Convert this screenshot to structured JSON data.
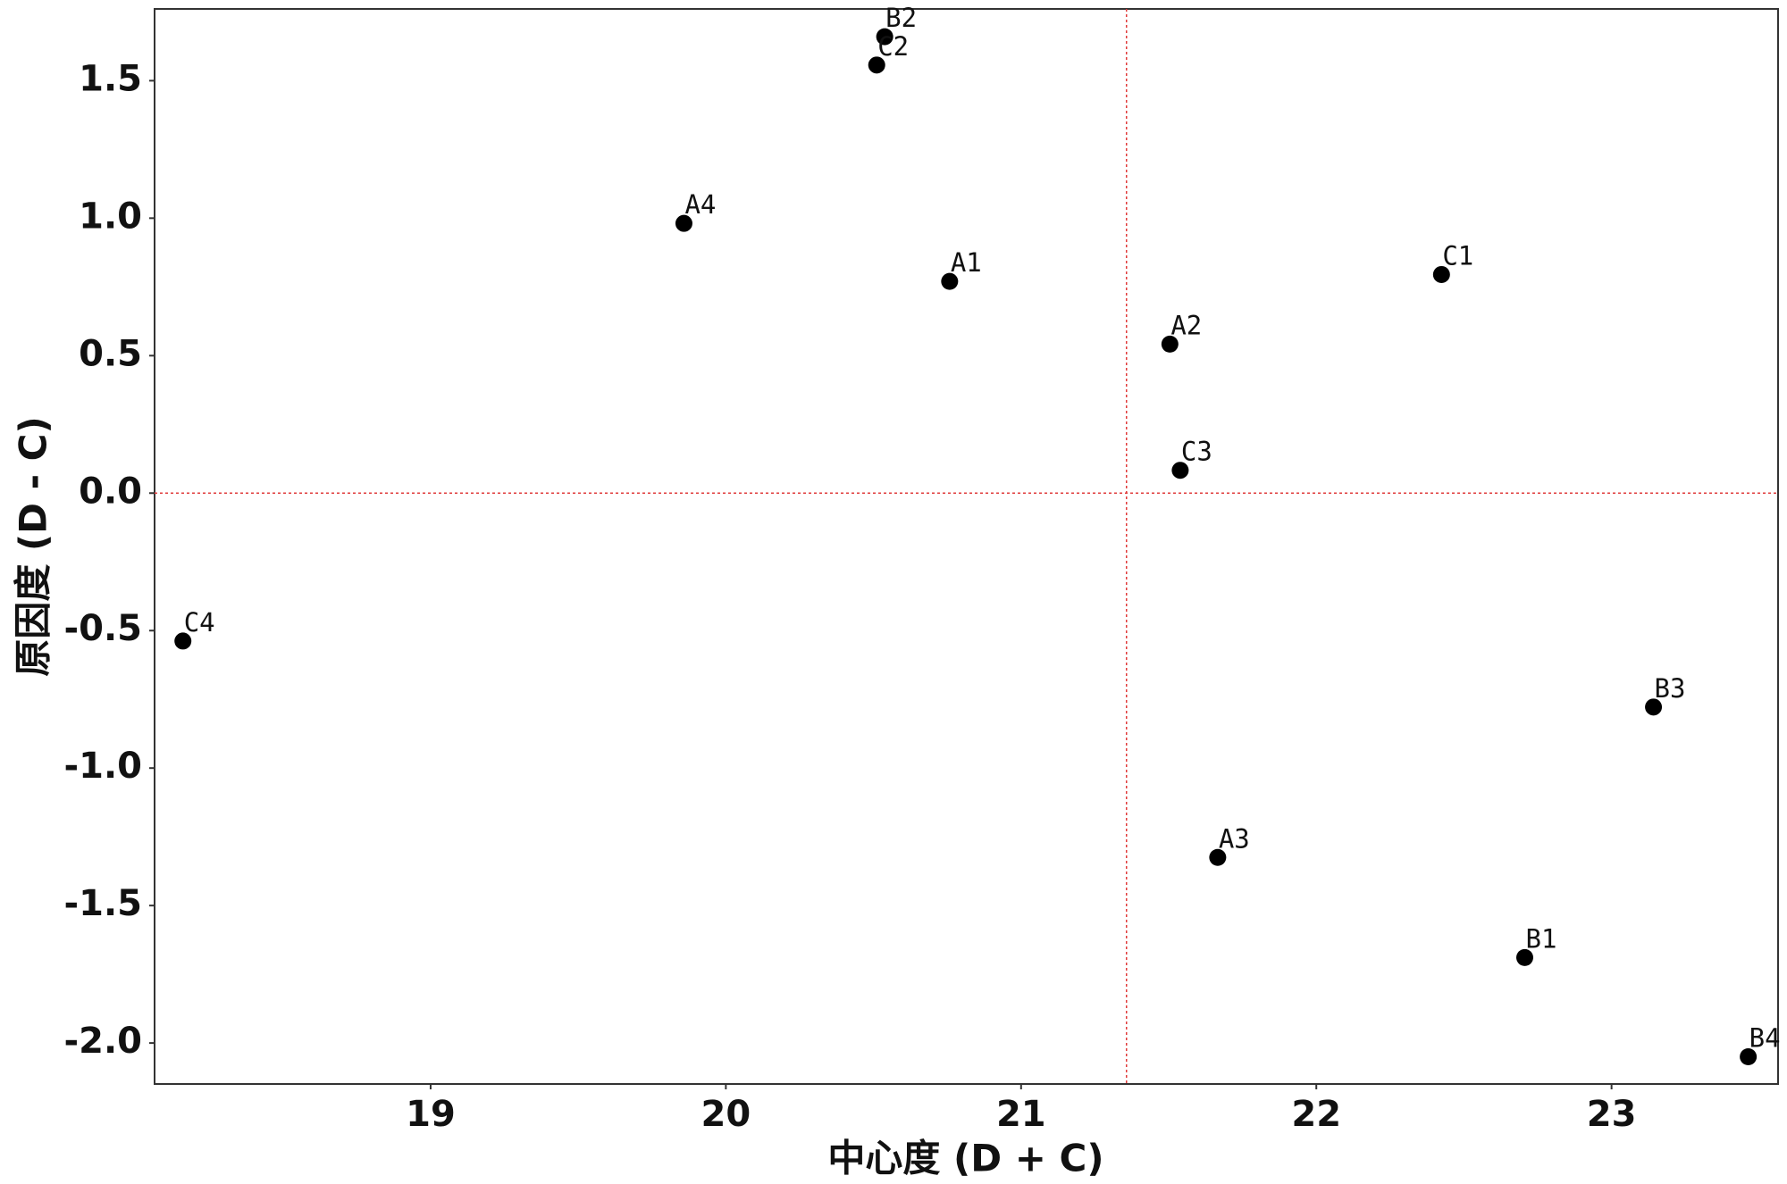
{
  "chart_data": {
    "type": "scatter",
    "x_label": "中心度 (D + C)",
    "y_label": "原因度 (D - C)",
    "labels": [
      "B2",
      "C2",
      "A4",
      "A1",
      "C1",
      "A2",
      "C3",
      "C4",
      "B3",
      "A3",
      "B1",
      "B4"
    ],
    "x": [
      20.538,
      20.511,
      19.858,
      20.758,
      22.424,
      21.504,
      21.539,
      18.161,
      23.142,
      21.666,
      22.706,
      23.463
    ],
    "values": [
      1.66,
      1.557,
      0.981,
      0.77,
      0.795,
      0.542,
      0.083,
      -0.538,
      -0.778,
      -1.325,
      -1.689,
      -2.05
    ],
    "color": "#000000",
    "xlim": [
      18.065,
      23.564
    ],
    "ylim": [
      -2.149,
      1.761
    ],
    "xticks": [
      19,
      20,
      21,
      22,
      23
    ],
    "yticks": [
      1.5,
      {
        "value": 1.0,
        "label": "1.0"
      },
      0.5,
      {
        "value": 0.0,
        "label": "0.0"
      },
      -0.5,
      {
        "value": -1.0,
        "label": "-1.0"
      },
      -1.5,
      {
        "value": -2.0,
        "label": "-2.0"
      }
    ],
    "reference_lines": {
      "x": 21.357,
      "y": 0,
      "color": "#e03c3c"
    },
    "grid": false
  }
}
